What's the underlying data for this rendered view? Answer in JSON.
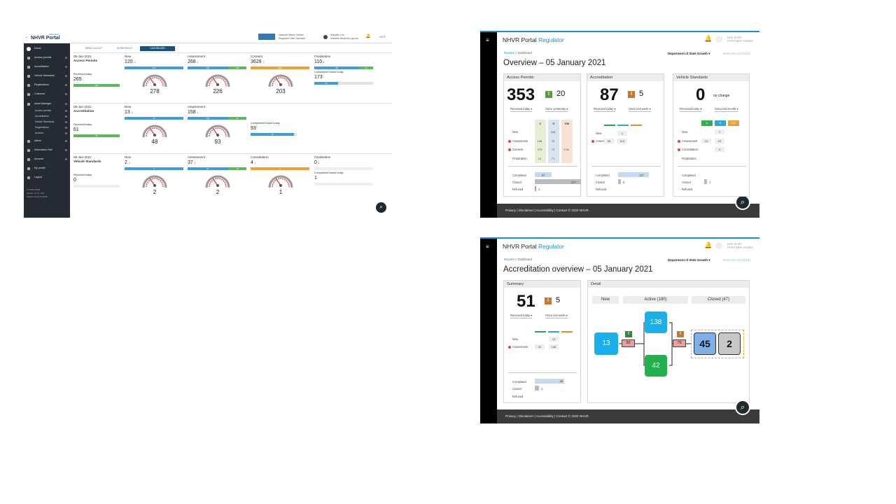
{
  "panel1": {
    "brand": "NHVR Portal",
    "beta": "PREVIEW",
    "agency": "National Heavy Vehicle",
    "agency_sub": "Regulator User Operator",
    "user": "Michelle Lee",
    "user_sub": "michelle.lee@nhvr.gov.au",
    "help": "HELP",
    "tabs": [
      "MENU LAYOUT",
      "WORKSPACE",
      "DASHBOARD"
    ],
    "sidebar": [
      "Home",
      "Access permits",
      "Accreditation",
      "Vehicle Standards",
      "Registrations",
      "Customer",
      "Asset Manager",
      "Admin",
      "Information Hub",
      "Account",
      "My profile",
      "Logout"
    ],
    "subitems": [
      "Access permits",
      "Accreditation",
      "Vehicle Standards",
      "Registrations",
      "Account"
    ],
    "footer": [
      "© 2019 NHVR",
      "Version 0.1.0 - 001",
      "Session ID 0e-8f-9f-9b"
    ],
    "rows": [
      {
        "date": "05-Jan-2021",
        "name": "Access Permits",
        "recv_label": "Received today",
        "recv": "265",
        "recv_bar": "265",
        "cols": [
          {
            "label": "New",
            "value": "120",
            "bar": "120",
            "gauge": "278"
          },
          {
            "label": "Assessment",
            "value": "268",
            "bar": "132",
            "bar2": "136",
            "gauge": "226"
          },
          {
            "label": "Consent",
            "value": "3629",
            "bar": "3629",
            "gauge": "203"
          },
          {
            "label": "Finalisation",
            "value": "110",
            "bar": "88",
            "bar2": "22",
            "closed_label": "Completed/Closed today",
            "closed": "173",
            "closed_bar": "90"
          }
        ]
      },
      {
        "date": "05-Jan-2021",
        "name": "Accreditation",
        "recv_label": "Received today",
        "recv": "61",
        "recv_bar": "61",
        "cols": [
          {
            "label": "New",
            "value": "13",
            "bar": "13",
            "gauge": "48"
          },
          {
            "label": "Assessment",
            "value": "158",
            "bar": "121",
            "bar2": "37",
            "gauge": "93"
          },
          {
            "label": "",
            "value": "",
            "closed_label": "Completed/Closed today",
            "closed": "93",
            "closed_bar": "93"
          }
        ]
      },
      {
        "date": "05-Jan-2021",
        "name": "Vehicle Standards",
        "recv_label": "Received today",
        "recv": "0",
        "cols": [
          {
            "label": "New",
            "value": "2",
            "bar": "2",
            "gauge": "2"
          },
          {
            "label": "Assessment",
            "value": "37",
            "bar": "21",
            "bar2": "16",
            "gauge": "2"
          },
          {
            "label": "Consultation",
            "value": "4",
            "bar": "4",
            "gauge": "1"
          },
          {
            "label": "Finalisation",
            "value": "0",
            "closed_label": "Completed/Closed today",
            "closed": "1"
          }
        ]
      }
    ]
  },
  "panel2": {
    "brand": "NHVR Portal",
    "brand2": "Regulator",
    "user": "Bob Smith",
    "role": "PARTNER ADMIN",
    "crumb_home": "Reports",
    "crumb": "> Dashboard",
    "dept": "Department of State Growth",
    "manage": "MANAGE ACCOUNT",
    "title": "Overview – 05 January 2021",
    "footer": "Privacy  |  Disclaimer  |  Accessibility  |  Contact  © 2020 NHVR",
    "cards": [
      {
        "title": "Access Permits",
        "big": "353",
        "delta": "20",
        "sel1": "Received today",
        "sel2": "Since yesterday",
        "cols": [
          "C",
          "R",
          "RM"
        ],
        "rows": [
          {
            "label": "New",
            "v": [
              "",
              "108",
              ""
            ]
          },
          {
            "label": "Assessment",
            "v": [
              "138",
              "72",
              ""
            ]
          },
          {
            "label": "Consent",
            "v": [
              "279",
              "73",
              "3.4k"
            ]
          },
          {
            "label": "Finalization",
            "v": [
              "12",
              "71",
              ""
            ]
          }
        ],
        "done": [
          {
            "label": "Completed",
            "v": "87"
          },
          {
            "label": "Closed",
            "v": "217"
          },
          {
            "label": "Refused",
            "v": "4"
          }
        ]
      },
      {
        "title": "Accreditation",
        "big": "87",
        "delta": "5",
        "sel1": "Received today",
        "sel2": "Since last week",
        "rows": [
          {
            "label": "New",
            "v": [
              "",
              "4",
              ""
            ]
          },
          {
            "label": "Assessment",
            "v": [
              "36",
              "113",
              ""
            ]
          }
        ],
        "done": [
          {
            "label": "Completed",
            "v": "137"
          },
          {
            "label": "Closed",
            "v": "6"
          },
          {
            "label": "Refused",
            "v": ""
          }
        ]
      },
      {
        "title": "Vehicle Standards",
        "big": "0",
        "delta": "no change",
        "sel1": "Received today",
        "sel2": "Since last month",
        "cols": [
          "C",
          "R",
          "RM"
        ],
        "rows": [
          {
            "label": "New",
            "v": [
              "",
              "1",
              ""
            ]
          },
          {
            "label": "Assessment",
            "v": [
              "14",
              "24",
              ""
            ]
          },
          {
            "label": "Consultation",
            "v": [
              "",
              "4",
              ""
            ]
          },
          {
            "label": "Finalization",
            "v": [
              "",
              "",
              ""
            ]
          }
        ],
        "done": [
          {
            "label": "Completed",
            "v": ""
          },
          {
            "label": "Closed",
            "v": "1"
          },
          {
            "label": "Refused",
            "v": ""
          }
        ]
      }
    ]
  },
  "panel3": {
    "title": "Accreditation overview – 05 January 2021",
    "summary_title": "Summary",
    "detail_title": "Detail",
    "big": "51",
    "delta": "5",
    "sel1": "Received today",
    "sel2": "Since last week",
    "rows": [
      {
        "label": "New",
        "v": [
          "",
          "13"
        ]
      },
      {
        "label": "Assessment",
        "v": [
          "42",
          "138"
        ]
      }
    ],
    "done": [
      {
        "label": "Completed",
        "v": "45"
      },
      {
        "label": "Closed",
        "v": "2"
      },
      {
        "label": "Refused",
        "v": ""
      }
    ],
    "tabs": [
      "New",
      "Active (180)",
      "Closed (47)"
    ],
    "flow": {
      "new": "13",
      "gate1": "50",
      "top": "138",
      "bottom": "42",
      "gate2": "75",
      "done": "45",
      "closed": "2"
    }
  },
  "colors": {
    "blue": "#3d9be0",
    "green": "#5cb85c",
    "orange": "#f0a030",
    "navy": "#1d4f7a",
    "sidebar": "#262b33"
  }
}
